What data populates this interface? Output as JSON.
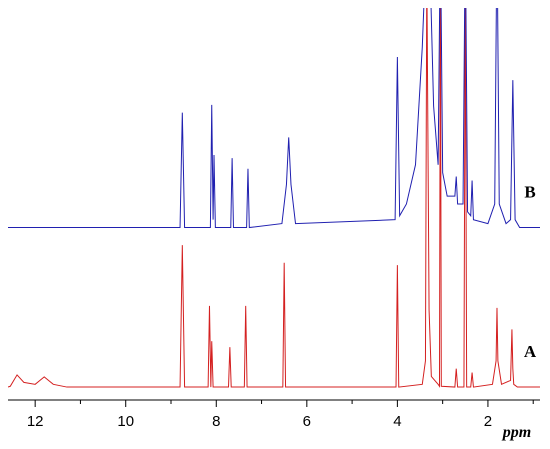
{
  "chart_data": {
    "type": "line",
    "x_label": "ppm",
    "xlim": [
      12.6,
      0.85
    ],
    "ylim": [
      0,
      100
    ],
    "xticks": [
      12,
      10,
      8,
      6,
      4,
      2
    ],
    "xminorticks": [
      11,
      9,
      7,
      5,
      3,
      1
    ],
    "series": [
      {
        "name": "A",
        "color": "#d42020",
        "x": [
          12.6,
          12.55,
          12.4,
          12.25,
          12.0,
          11.8,
          11.6,
          11.3,
          8.8,
          8.75,
          8.7,
          8.18,
          8.15,
          8.12,
          8.1,
          8.07,
          7.73,
          7.7,
          7.67,
          7.38,
          7.35,
          7.32,
          6.53,
          6.5,
          6.47,
          4.03,
          4.0,
          3.97,
          3.45,
          3.38,
          3.35,
          3.3,
          3.25,
          3.1,
          3.07,
          3.05,
          3.03,
          2.73,
          2.7,
          2.67,
          2.53,
          2.5,
          2.47,
          2.38,
          2.35,
          2.32,
          1.9,
          1.82,
          1.8,
          1.78,
          1.7,
          1.5,
          1.47,
          1.45,
          1.43,
          1.35,
          0.85
        ],
        "values": [
          3.3,
          3.5,
          6.4,
          4.5,
          4,
          5.9,
          4,
          3.3,
          3.3,
          39.5,
          3.3,
          3.3,
          24,
          3.3,
          15,
          3.3,
          3.3,
          13.5,
          3.3,
          3.3,
          24,
          3.3,
          3.3,
          35,
          3.3,
          3.3,
          34.4,
          3.3,
          4,
          10,
          110,
          23,
          6,
          4,
          3.5,
          110,
          3.5,
          3.3,
          8,
          3.3,
          3.3,
          110,
          3.3,
          3.3,
          7,
          3.3,
          4,
          10,
          23.5,
          10,
          4,
          5,
          18,
          8,
          4,
          3.3,
          3.3
        ]
      },
      {
        "name": "B",
        "color": "#2020b0",
        "x": [
          12.6,
          8.8,
          8.75,
          8.7,
          8.13,
          8.1,
          8.07,
          8.05,
          8.02,
          7.68,
          7.65,
          7.62,
          7.33,
          7.3,
          7.27,
          6.55,
          6.45,
          6.4,
          6.35,
          6.25,
          4.05,
          4.0,
          3.95,
          3.8,
          3.6,
          3.45,
          3.35,
          3.3,
          3.2,
          3.1,
          3.05,
          3.0,
          2.9,
          2.73,
          2.7,
          2.67,
          2.55,
          2.5,
          2.45,
          2.38,
          2.35,
          2.32,
          2.0,
          1.85,
          1.8,
          1.75,
          1.6,
          1.5,
          1.45,
          1.4,
          1.3,
          0.85
        ],
        "values": [
          44,
          44,
          73.3,
          44,
          44,
          75.3,
          46,
          62.5,
          44,
          44,
          61.7,
          44,
          44,
          59,
          44,
          45,
          55,
          67,
          55,
          45,
          46,
          87.5,
          47,
          50,
          60,
          90,
          120,
          120,
          75,
          60,
          120,
          58,
          52,
          52,
          57,
          50,
          50,
          120,
          48,
          47,
          56,
          46,
          45,
          50,
          120,
          50,
          45,
          46,
          81.6,
          46,
          44,
          44
        ]
      }
    ]
  }
}
